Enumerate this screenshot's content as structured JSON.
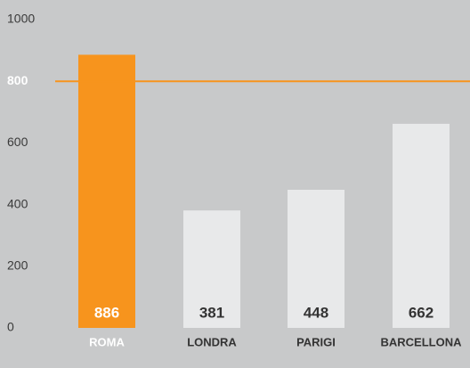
{
  "chart_data": {
    "type": "bar",
    "categories": [
      "ROMA",
      "LONDRA",
      "PARIGI",
      "BARCELLONA"
    ],
    "values": [
      886,
      381,
      448,
      662
    ],
    "color": "#e8e9ea",
    "highlight": 0,
    "highlight_color": "#f7941d",
    "ylim": [
      0,
      1000
    ],
    "yticks": [
      0,
      200,
      400,
      600,
      800,
      1000
    ],
    "reference_line": {
      "value": 800,
      "color": "#f7941d"
    },
    "grid": false
  }
}
